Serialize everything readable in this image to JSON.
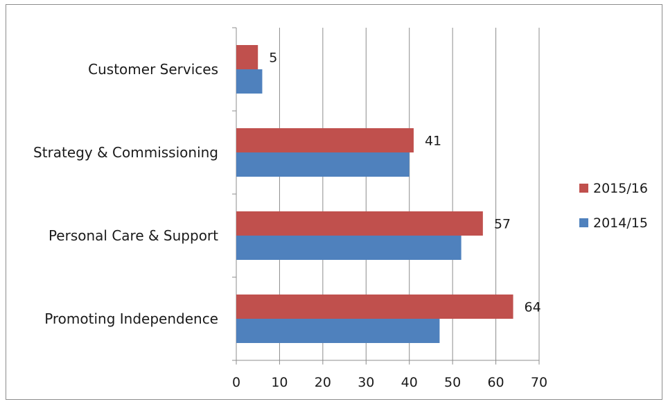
{
  "chart_data": {
    "type": "bar",
    "orientation": "horizontal",
    "categories": [
      "Customer Services",
      "Strategy & Commissioning",
      "Personal Care & Support",
      "Promoting Independence"
    ],
    "series": [
      {
        "name": "2015/16",
        "color": "#c0504d",
        "values": [
          5,
          41,
          57,
          64
        ],
        "data_labels": [
          "5",
          "41",
          "57",
          "64"
        ]
      },
      {
        "name": "2014/15",
        "color": "#4f81bd",
        "values": [
          6,
          40,
          52,
          47
        ]
      }
    ],
    "xlim": [
      0,
      70
    ],
    "xticks": [
      "0",
      "10",
      "20",
      "30",
      "40",
      "50",
      "60",
      "70"
    ],
    "grid": "vertical",
    "legend_position": "right"
  }
}
